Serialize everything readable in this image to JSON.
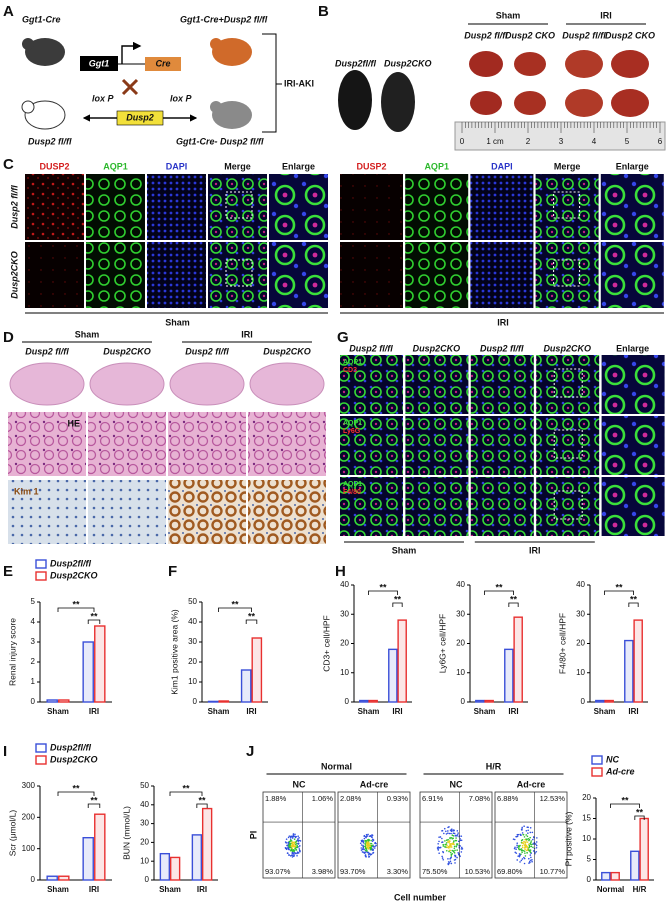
{
  "panel_labels": [
    "A",
    "B",
    "C",
    "D",
    "E",
    "F",
    "G",
    "H",
    "I",
    "J"
  ],
  "panel_A": {
    "cre_mouse": "Ggt1-Cre",
    "cross_mouse": "Ggt1-Cre+Dusp2 fl/fl",
    "promoter": "Ggt1",
    "cre": "Cre",
    "model": "IRI-AKI",
    "flox_mouse": "Dusp2 fl/fl",
    "loxp": [
      "lox P",
      "lox P"
    ],
    "gene": "Dusp2",
    "control_mouse": "Ggt1-Cre- Dusp2 fl/fl"
  },
  "panel_B": {
    "mice": [
      "Dusp2fl/fl",
      "Dusp2CKO"
    ],
    "groups": [
      "Sham",
      "IRI"
    ],
    "genotypes": [
      "Dusp2 fl/fl",
      "Dusp2 CKO"
    ],
    "ruler": [
      "0",
      "1 cm",
      "2",
      "3",
      "4",
      "5",
      "6"
    ]
  },
  "panel_C": {
    "channels": [
      "DUSP2",
      "AQP1",
      "DAPI",
      "Merge",
      "Enlarge"
    ],
    "rows": [
      "Dusp2 fl/fl",
      "Dusp2CKO"
    ],
    "groups": [
      "Sham",
      "IRI"
    ]
  },
  "panel_D": {
    "groups": [
      "Sham",
      "IRI"
    ],
    "genotypes": [
      "Dusp2 fl/fl",
      "Dusp2CKO"
    ],
    "stains": [
      "HE",
      "Kim 1"
    ]
  },
  "panel_G": {
    "columns": [
      "Dusp2 fl/fl",
      "Dusp2CKO",
      "Dusp2 fl/fl",
      "Dusp2CKO",
      "Enlarge"
    ],
    "markers": [
      [
        "AQP1",
        "CD3"
      ],
      [
        "AQP1",
        "Ly6G"
      ],
      [
        "AQP1",
        "F4/80"
      ]
    ],
    "groups": [
      "Sham",
      "IRI"
    ]
  },
  "flow": {
    "groups": [
      "Normal",
      "H/R"
    ],
    "y_label": "PI",
    "x_label": "Cell number",
    "plots": [
      {
        "label": "NC",
        "quadrants": [
          "1.88%",
          "1.06%",
          "93.07%",
          "3.98%"
        ]
      },
      {
        "label": "Ad-cre",
        "quadrants": [
          "2.08%",
          "0.93%",
          "93.70%",
          "3.30%"
        ]
      },
      {
        "label": "NC",
        "quadrants": [
          "6.91%",
          "7.08%",
          "75.50%",
          "10.53%"
        ]
      },
      {
        "label": "Ad-cre",
        "quadrants": [
          "6.88%",
          "12.53%",
          "69.80%",
          "10.77%"
        ]
      }
    ]
  },
  "chart_data": [
    {
      "type": "bar",
      "ylabel": "Renal injury score",
      "categories": [
        "Sham",
        "IRI"
      ],
      "legend": true,
      "series": [
        {
          "name": "Dusp2fl/fl",
          "color": "#3a4fd8",
          "values": [
            0.1,
            3.0
          ]
        },
        {
          "name": "Dusp2CKO",
          "color": "#e8302f",
          "values": [
            0.1,
            3.8
          ]
        }
      ],
      "ylim": [
        0,
        5
      ],
      "yticks": [
        0,
        1,
        2,
        3,
        4,
        5
      ],
      "annotations": [
        "**",
        "**"
      ]
    },
    {
      "type": "bar",
      "ylabel": "Kim1 positive area (%)",
      "categories": [
        "Sham",
        "IRI"
      ],
      "series": [
        {
          "color": "#3a4fd8",
          "values": [
            0.3,
            16
          ]
        },
        {
          "color": "#e8302f",
          "values": [
            0.5,
            32
          ]
        }
      ],
      "ylim": [
        0,
        50
      ],
      "yticks": [
        0,
        10,
        20,
        30,
        40,
        50
      ],
      "annotations": [
        "**",
        "**"
      ]
    },
    {
      "type": "bar",
      "ylabel": "CD3+ cell/HPF",
      "categories": [
        "Sham",
        "IRI"
      ],
      "series": [
        {
          "color": "#3a4fd8",
          "values": [
            0.5,
            18
          ]
        },
        {
          "color": "#e8302f",
          "values": [
            0.5,
            28
          ]
        }
      ],
      "ylim": [
        0,
        40
      ],
      "yticks": [
        0,
        10,
        20,
        30,
        40
      ],
      "annotations": [
        "**",
        "**"
      ]
    },
    {
      "type": "bar",
      "ylabel": "Ly6G+ cell/HPF",
      "categories": [
        "Sham",
        "IRI"
      ],
      "series": [
        {
          "color": "#3a4fd8",
          "values": [
            0.5,
            18
          ]
        },
        {
          "color": "#e8302f",
          "values": [
            0.5,
            29
          ]
        }
      ],
      "ylim": [
        0,
        40
      ],
      "yticks": [
        0,
        10,
        20,
        30,
        40
      ],
      "annotations": [
        "**",
        "**"
      ]
    },
    {
      "type": "bar",
      "ylabel": "F4/80+ cell/HPF",
      "categories": [
        "Sham",
        "IRI"
      ],
      "series": [
        {
          "color": "#3a4fd8",
          "values": [
            0.5,
            21
          ]
        },
        {
          "color": "#e8302f",
          "values": [
            0.5,
            28
          ]
        }
      ],
      "ylim": [
        0,
        40
      ],
      "yticks": [
        0,
        10,
        20,
        30,
        40
      ],
      "annotations": [
        "**",
        "**"
      ]
    },
    {
      "type": "bar",
      "ylabel": "Scr (μmol/L)",
      "categories": [
        "Sham",
        "IRI"
      ],
      "legend": true,
      "series": [
        {
          "name": "Dusp2fl/fl",
          "color": "#3a4fd8",
          "values": [
            12,
            135
          ]
        },
        {
          "name": "Dusp2CKO",
          "color": "#e8302f",
          "values": [
            12,
            210
          ]
        }
      ],
      "ylim": [
        0,
        300
      ],
      "yticks": [
        0,
        100,
        200,
        300
      ],
      "annotations": [
        "**",
        "**"
      ]
    },
    {
      "type": "bar",
      "ylabel": "BUN (mmol/L)",
      "categories": [
        "Sham",
        "IRI"
      ],
      "series": [
        {
          "color": "#3a4fd8",
          "values": [
            14,
            24
          ]
        },
        {
          "color": "#e8302f",
          "values": [
            12,
            38
          ]
        }
      ],
      "ylim": [
        0,
        50
      ],
      "yticks": [
        0,
        10,
        20,
        30,
        40,
        50
      ],
      "annotations": [
        "**",
        "**"
      ]
    },
    {
      "type": "bar",
      "ylabel": "PI positive (%)",
      "categories": [
        "Normal",
        "H/R"
      ],
      "legend": true,
      "series": [
        {
          "name": "NC",
          "color": "#3a4fd8",
          "values": [
            1.8,
            7
          ]
        },
        {
          "name": "Ad-cre",
          "color": "#e8302f",
          "values": [
            1.8,
            15
          ]
        }
      ],
      "ylim": [
        0,
        20
      ],
      "yticks": [
        0,
        5,
        10,
        15,
        20
      ],
      "annotations": [
        "**",
        "**"
      ]
    }
  ]
}
